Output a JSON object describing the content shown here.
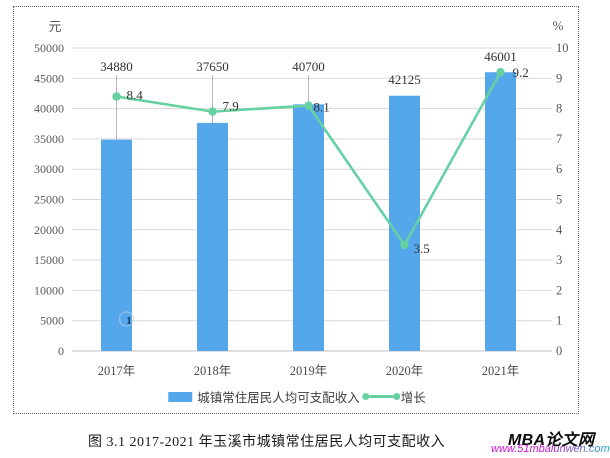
{
  "figure": {
    "caption": "图 3.1  2017-2021 年玉溪市城镇常住居民人均可支配收入",
    "watermark": {
      "brand": "MBA论文网",
      "url": "www.51mbalunwen.com"
    }
  },
  "chart_data": {
    "type": "bar+line",
    "title": "",
    "categories": [
      "2017年",
      "2018年",
      "2019年",
      "2020年",
      "2021年"
    ],
    "series": [
      {
        "name": "城镇常住居民人均可支配收入",
        "type": "bar",
        "axis": "left",
        "values": [
          34880,
          37650,
          40700,
          42125,
          46001
        ],
        "labels": [
          "34880",
          "37650",
          "40700",
          "42125",
          "46001"
        ]
      },
      {
        "name": "增长",
        "type": "line",
        "axis": "right",
        "values": [
          8.4,
          7.9,
          8.1,
          3.5,
          9.2
        ],
        "labels": [
          "8.4",
          "7.9",
          "8.1",
          "3.5",
          "9.2"
        ]
      }
    ],
    "left_axis": {
      "unit": "元",
      "min": 0,
      "max": 50000,
      "step": 5000,
      "tick_labels": [
        "0",
        "5000",
        "10000",
        "15000",
        "20000",
        "25000",
        "30000",
        "35000",
        "40000",
        "45000",
        "50000"
      ]
    },
    "right_axis": {
      "unit": "%",
      "min": 0,
      "max": 10,
      "step": 1,
      "tick_labels": [
        "0",
        "1",
        "2",
        "3",
        "4",
        "5",
        "6",
        "7",
        "8",
        "9",
        "10"
      ]
    },
    "grid": true,
    "legend_position": "bottom-inside",
    "colors": {
      "bar": "#55a7eb",
      "line": "#66d1a3",
      "grid": "#d9d9d9",
      "axis": "#bfbfbf",
      "leader": "#a6a6a6",
      "tick_text": "#595959",
      "value_text": "#333333",
      "x_label_text": "#4a4a4a",
      "watermark_url_start": "#cf0fcf",
      "watermark_url_end": "#12a7cd"
    },
    "annotations": [
      {
        "text": "1"
      }
    ]
  }
}
